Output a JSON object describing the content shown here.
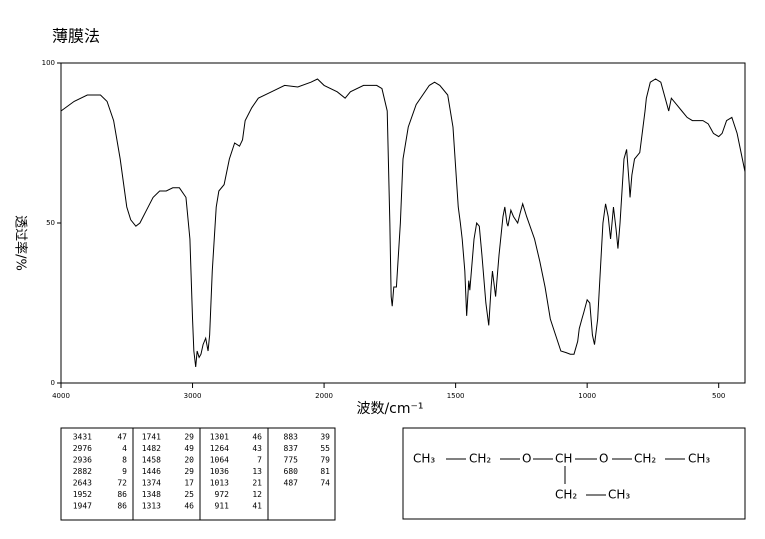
{
  "chart_data": {
    "type": "line",
    "title": "薄膜法",
    "x_label": "波数/cm⁻¹",
    "y_label": "透过率/%",
    "xlim": [
      4000,
      400
    ],
    "x_scale_break": 2000,
    "x_scale_factor_below_break": 2,
    "xticks": [
      4000,
      3000,
      2000,
      1500,
      1000,
      500
    ],
    "ylim": [
      0,
      100
    ],
    "yticks": [
      0,
      50,
      100
    ],
    "grid": false,
    "color": "#000000",
    "x": [
      4000,
      3900,
      3800,
      3700,
      3650,
      3600,
      3550,
      3500,
      3470,
      3431,
      3400,
      3350,
      3300,
      3250,
      3200,
      3150,
      3100,
      3050,
      3020,
      3000,
      2990,
      2976,
      2965,
      2950,
      2936,
      2920,
      2900,
      2882,
      2870,
      2850,
      2820,
      2800,
      2760,
      2720,
      2680,
      2643,
      2620,
      2600,
      2550,
      2500,
      2400,
      2300,
      2200,
      2100,
      2050,
      2000,
      1950,
      1920,
      1900,
      1850,
      1800,
      1780,
      1760,
      1750,
      1745,
      1741,
      1735,
      1725,
      1710,
      1700,
      1680,
      1650,
      1600,
      1580,
      1560,
      1530,
      1510,
      1490,
      1482,
      1475,
      1465,
      1458,
      1450,
      1446,
      1430,
      1420,
      1410,
      1400,
      1385,
      1374,
      1365,
      1360,
      1348,
      1335,
      1320,
      1313,
      1305,
      1301,
      1290,
      1280,
      1264,
      1255,
      1245,
      1230,
      1200,
      1180,
      1160,
      1140,
      1120,
      1100,
      1080,
      1064,
      1050,
      1036,
      1030,
      1020,
      1013,
      1000,
      990,
      980,
      972,
      960,
      940,
      930,
      920,
      911,
      900,
      890,
      883,
      875,
      860,
      850,
      840,
      837,
      830,
      820,
      800,
      780,
      775,
      760,
      740,
      720,
      700,
      690,
      680,
      660,
      640,
      620,
      600,
      560,
      540,
      520,
      500,
      487,
      470,
      450,
      430,
      410,
      400
    ],
    "values": [
      85,
      88,
      90,
      90,
      88,
      82,
      70,
      55,
      51,
      49,
      50,
      54,
      58,
      60,
      60,
      61,
      61,
      58,
      45,
      20,
      10,
      5,
      10,
      8,
      9,
      12,
      14,
      10,
      15,
      35,
      55,
      60,
      62,
      70,
      75,
      74,
      76,
      82,
      86,
      89,
      91,
      93,
      92.5,
      94,
      95,
      93,
      91,
      89,
      91,
      93,
      93,
      92,
      85,
      50,
      27,
      24,
      30,
      30,
      50,
      70,
      80,
      87,
      93,
      94,
      93,
      90,
      80,
      55,
      50,
      45,
      35,
      21,
      32,
      29,
      45,
      50,
      49,
      40,
      25,
      18,
      30,
      35,
      27,
      40,
      52,
      55,
      50,
      49,
      54,
      52,
      50,
      53,
      56,
      52,
      45,
      38,
      30,
      20,
      15,
      10,
      9.5,
      9,
      9,
      13,
      17,
      20,
      22,
      26,
      25,
      15,
      12,
      20,
      50,
      56,
      52,
      45,
      55,
      48,
      42,
      50,
      70,
      73,
      62,
      58,
      65,
      70,
      72,
      85,
      89,
      94,
      95,
      94,
      88,
      85,
      89,
      87,
      85,
      83,
      82,
      82,
      81,
      78,
      77,
      78,
      82,
      83,
      78,
      70,
      66
    ]
  },
  "peak_table": [
    [
      [
        3431,
        47
      ],
      [
        2976,
        4
      ],
      [
        2936,
        8
      ],
      [
        2882,
        9
      ],
      [
        2643,
        72
      ],
      [
        1952,
        86
      ],
      [
        1947,
        86
      ]
    ],
    [
      [
        1741,
        29
      ],
      [
        1482,
        49
      ],
      [
        1458,
        20
      ],
      [
        1446,
        29
      ],
      [
        1374,
        17
      ],
      [
        1348,
        25
      ],
      [
        1313,
        46
      ]
    ],
    [
      [
        1301,
        46
      ],
      [
        1264,
        43
      ],
      [
        1064,
        7
      ],
      [
        1036,
        13
      ],
      [
        1013,
        21
      ],
      [
        972,
        12
      ],
      [
        911,
        41
      ]
    ],
    [
      [
        883,
        39
      ],
      [
        837,
        55
      ],
      [
        775,
        79
      ],
      [
        680,
        81
      ],
      [
        487,
        74
      ]
    ]
  ],
  "structure": {
    "main_chain": [
      "CH₃",
      "CH₂",
      "O",
      "CH",
      "O",
      "CH₂",
      "CH₃"
    ],
    "branch": [
      "CH₂",
      "CH₃"
    ]
  }
}
